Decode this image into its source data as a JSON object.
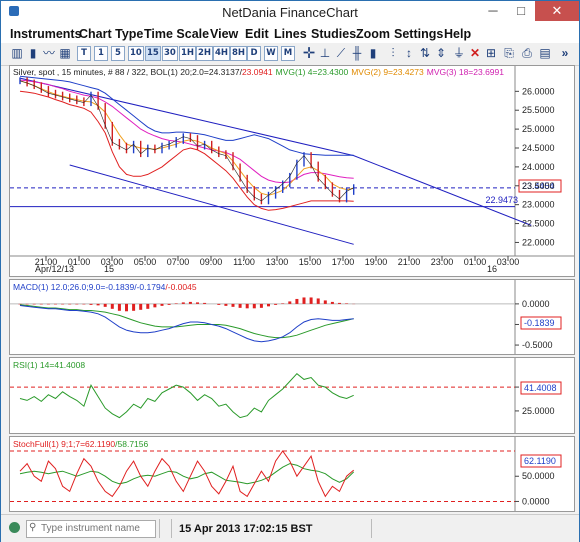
{
  "window": {
    "title": "NetDania FinanceChart",
    "minimize": "─",
    "maximize": "□",
    "close": "✕"
  },
  "menu": [
    "Instruments",
    "Chart Type",
    "Time Scale",
    "View",
    "Edit",
    "Lines",
    "Studies",
    "Zoom",
    "Settings",
    "Help"
  ],
  "toolbar": {
    "intervals": [
      "T",
      "1",
      "5",
      "10",
      "15",
      "30",
      "1H",
      "2H",
      "4H",
      "8H",
      "D",
      "W",
      "M"
    ],
    "more": "»"
  },
  "price_panel": {
    "legend_base": "Silver, spot , 15 minutes, # 88 / 322, BOL(1) 20;2.0=24.3137/",
    "legend_bol_low": "23.0941",
    "legend_mvg1": "MVG(1) 4=23.4300",
    "legend_mvg2": "MVG(2) 9=23.4273",
    "legend_mvg3": "MVG(3) 18=23.6991",
    "y_ticks": [
      "26.0000",
      "25.5000",
      "25.0000",
      "24.5000",
      "24.0000",
      "23.5000",
      "23.0000",
      "22.5000",
      "22.0000"
    ],
    "last_price": "23.4454",
    "hline_label": "22.9473",
    "x_ticks": [
      "21:00",
      "01:00",
      "03:00",
      "05:00",
      "07:00",
      "09:00",
      "11:00",
      "13:00",
      "15:00",
      "17:00",
      "19:00",
      "21:00",
      "23:00",
      "01:00",
      "03:00"
    ],
    "date_left": "Apr/12/13",
    "date_15": "15",
    "date_16": "16"
  },
  "macd_panel": {
    "legend_a": "MACD(1) 12.0;26.0;9.0=-0.1839",
    "legend_b": "/-0.1794",
    "legend_c": "/-0.0045",
    "y_ticks": [
      "0.0000",
      "-0.2500",
      "-0.5000"
    ],
    "last_value": "-0.1839"
  },
  "rsi_panel": {
    "legend": "RSI(1) 14=41.4008",
    "y_ticks": [
      "50.0000",
      "25.0000"
    ],
    "last_value": "41.4008"
  },
  "stoch_panel": {
    "legend_a": "StochFull(1) 9;1;7=62.1190",
    "legend_b": "/58.7156",
    "y_ticks": [
      "50.0000",
      "0.0000"
    ],
    "last_value": "62.1190"
  },
  "status": {
    "search_placeholder": "Type instrument name",
    "datetime": "15 Apr 2013 17:02:15 BST"
  },
  "chart_data": {
    "type": "line",
    "price": {
      "x_labels": [
        "21:00",
        "01:00",
        "03:00",
        "05:00",
        "07:00",
        "09:00",
        "11:00",
        "13:00",
        "15:00",
        "17:00"
      ],
      "close": [
        26.28,
        26.22,
        26.15,
        26.05,
        25.95,
        25.9,
        25.85,
        25.8,
        25.75,
        25.7,
        25.9,
        25.6,
        25.1,
        24.65,
        24.55,
        24.45,
        24.6,
        24.35,
        24.5,
        24.45,
        24.55,
        24.6,
        24.7,
        24.8,
        24.75,
        24.55,
        24.6,
        24.45,
        24.35,
        24.3,
        24.0,
        23.7,
        23.4,
        23.2,
        23.1,
        23.25,
        23.4,
        23.55,
        23.75,
        24.1,
        24.3,
        24.05,
        23.7,
        23.5,
        23.3,
        23.15,
        23.35,
        23.45
      ],
      "ma4": [
        26.28,
        26.22,
        26.15,
        26.07,
        25.99,
        25.92,
        25.87,
        25.82,
        25.78,
        25.74,
        25.72,
        25.62,
        25.45,
        25.15,
        24.85,
        24.6,
        24.55,
        24.5,
        24.48,
        24.47,
        24.5,
        24.55,
        24.6,
        24.68,
        24.72,
        24.68,
        24.6,
        24.5,
        24.42,
        24.35,
        24.15,
        23.9,
        23.65,
        23.45,
        23.3,
        23.25,
        23.3,
        23.38,
        23.55,
        23.75,
        23.95,
        24.0,
        23.9,
        23.75,
        23.55,
        23.45,
        23.4,
        23.43
      ],
      "ma18": [
        26.3,
        26.28,
        26.25,
        26.22,
        26.18,
        26.12,
        26.07,
        26.0,
        25.95,
        25.9,
        25.87,
        25.82,
        25.72,
        25.6,
        25.45,
        25.3,
        25.15,
        25.0,
        24.9,
        24.82,
        24.75,
        24.7,
        24.68,
        24.65,
        24.6,
        24.55,
        24.5,
        24.45,
        24.42,
        24.38,
        24.3,
        24.2,
        24.05,
        23.9,
        23.75,
        23.65,
        23.6,
        23.58,
        23.6,
        23.7,
        23.8,
        23.85,
        23.85,
        23.82,
        23.78,
        23.74,
        23.71,
        23.7
      ],
      "bol_upper": [
        26.4,
        26.38,
        26.36,
        26.34,
        26.32,
        26.3,
        26.28,
        26.25,
        26.2,
        26.15,
        26.1,
        26.05,
        25.95,
        25.8,
        25.65,
        25.5,
        25.35,
        25.2,
        25.05,
        24.95,
        24.9,
        24.9,
        24.92,
        24.92,
        24.9,
        24.88,
        24.85,
        24.8,
        24.75,
        24.7,
        24.7,
        24.75,
        24.8,
        24.85,
        24.8,
        24.75,
        24.65,
        24.55,
        24.45,
        24.4,
        24.35,
        24.33,
        24.32,
        24.31,
        24.31,
        24.31,
        24.31,
        24.31
      ],
      "bol_lower": [
        26.0,
        25.98,
        25.95,
        25.9,
        25.85,
        25.78,
        25.72,
        25.65,
        25.6,
        25.55,
        25.45,
        25.2,
        24.9,
        24.4,
        24.0,
        23.8,
        23.75,
        23.75,
        23.8,
        23.9,
        24.0,
        24.15,
        24.3,
        24.45,
        24.5,
        24.45,
        24.35,
        24.2,
        24.05,
        23.9,
        23.7,
        23.45,
        23.2,
        23.0,
        22.9,
        22.85,
        22.87,
        22.9,
        22.95,
        23.0,
        23.05,
        23.1,
        23.1,
        23.1,
        23.1,
        23.1,
        23.1,
        23.09
      ],
      "channel_upper": [
        [
          0,
          26.35
        ],
        [
          47,
          24.3
        ],
        [
          72,
          22.45
        ]
      ],
      "channel_lower": [
        [
          7,
          24.05
        ],
        [
          47,
          21.95
        ]
      ],
      "hline": 22.9473,
      "ylim": [
        21.8,
        26.3
      ]
    },
    "macd": {
      "macd": [
        -0.02,
        -0.03,
        -0.04,
        -0.05,
        -0.06,
        -0.06,
        -0.07,
        -0.08,
        -0.08,
        -0.09,
        -0.1,
        -0.12,
        -0.16,
        -0.22,
        -0.28,
        -0.32,
        -0.34,
        -0.35,
        -0.35,
        -0.34,
        -0.32,
        -0.3,
        -0.27,
        -0.24,
        -0.22,
        -0.22,
        -0.23,
        -0.25,
        -0.27,
        -0.3,
        -0.34,
        -0.38,
        -0.42,
        -0.45,
        -0.46,
        -0.45,
        -0.43,
        -0.4,
        -0.35,
        -0.28,
        -0.22,
        -0.19,
        -0.18,
        -0.19,
        -0.2,
        -0.2,
        -0.19,
        -0.18
      ],
      "signal": [
        -0.01,
        -0.02,
        -0.03,
        -0.04,
        -0.05,
        -0.05,
        -0.06,
        -0.07,
        -0.07,
        -0.08,
        -0.08,
        -0.09,
        -0.1,
        -0.12,
        -0.14,
        -0.17,
        -0.2,
        -0.23,
        -0.25,
        -0.27,
        -0.28,
        -0.28,
        -0.28,
        -0.27,
        -0.26,
        -0.25,
        -0.25,
        -0.25,
        -0.25,
        -0.26,
        -0.28,
        -0.3,
        -0.33,
        -0.36,
        -0.38,
        -0.4,
        -0.41,
        -0.41,
        -0.4,
        -0.38,
        -0.35,
        -0.32,
        -0.29,
        -0.26,
        -0.24,
        -0.22,
        -0.2,
        -0.18
      ],
      "hist": [
        -0.01,
        -0.01,
        -0.01,
        -0.01,
        -0.01,
        -0.01,
        -0.01,
        -0.01,
        -0.01,
        -0.01,
        -0.02,
        -0.03,
        -0.06,
        -0.1,
        -0.14,
        -0.15,
        -0.14,
        -0.12,
        -0.1,
        -0.07,
        -0.04,
        -0.02,
        0.01,
        0.03,
        0.04,
        0.03,
        0.02,
        0.0,
        -0.02,
        -0.04,
        -0.06,
        -0.08,
        -0.09,
        -0.09,
        -0.08,
        -0.05,
        -0.02,
        0.01,
        0.05,
        0.1,
        0.13,
        0.13,
        0.11,
        0.07,
        0.04,
        0.02,
        0.01,
        -0.0045
      ],
      "ylim": [
        -0.56,
        0.12
      ]
    },
    "rsi": {
      "values": [
        38,
        36,
        40,
        35,
        42,
        38,
        45,
        40,
        36,
        30,
        52,
        40,
        28,
        22,
        18,
        24,
        32,
        28,
        38,
        35,
        44,
        48,
        52,
        50,
        44,
        36,
        42,
        38,
        30,
        32,
        24,
        18,
        20,
        28,
        24,
        36,
        42,
        48,
        56,
        64,
        58,
        60,
        52,
        50,
        44,
        40,
        38,
        41.4
      ],
      "overbought": 50,
      "ylim": [
        5,
        70
      ]
    },
    "stoch": {
      "k": [
        60,
        75,
        50,
        40,
        80,
        65,
        30,
        20,
        55,
        85,
        70,
        40,
        20,
        10,
        30,
        60,
        80,
        50,
        30,
        60,
        85,
        70,
        40,
        20,
        50,
        80,
        60,
        30,
        15,
        40,
        70,
        20,
        10,
        35,
        60,
        40,
        80,
        100,
        80,
        50,
        70,
        90,
        40,
        10,
        30,
        20,
        50,
        62.1
      ],
      "d": [
        55,
        58,
        60,
        58,
        55,
        58,
        60,
        55,
        50,
        55,
        60,
        58,
        50,
        40,
        35,
        38,
        45,
        50,
        52,
        50,
        55,
        60,
        58,
        50,
        45,
        48,
        55,
        58,
        50,
        42,
        40,
        38,
        35,
        38,
        42,
        48,
        58,
        68,
        75,
        72,
        65,
        62,
        60,
        55,
        45,
        38,
        45,
        58.7
      ],
      "ref": 100,
      "ylim": [
        -15,
        112
      ]
    }
  },
  "colors": {
    "price": "#222222",
    "bol": "#1f3fc8",
    "bol_lower": "#e02020",
    "mvg1": "#2a9a2a",
    "mvg2": "#f0a020",
    "mvg3": "#e020c0",
    "channel": "#2020c0",
    "macd_hist": "#e02020",
    "macd_line": "#1f3fc8",
    "signal": "#2a9a2a",
    "rsi": "#2a9a2a",
    "ref": "#e02020"
  }
}
